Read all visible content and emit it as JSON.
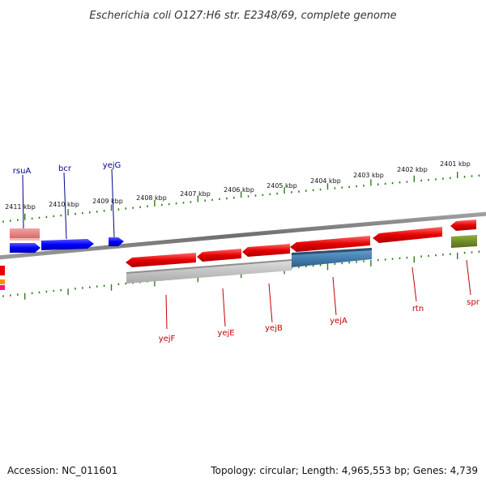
{
  "title": "Escherichia coli O127:H6 str. E2348/69, complete genome",
  "accession": "Accession: NC_011601",
  "topology": "Topology: circular; Length: 4,965,553 bp; Genes: 4,739",
  "colors": {
    "backbone": "#808080",
    "tick": "#2e7d1a",
    "forward_gene": "#0000ff",
    "reverse_gene": "#e60000",
    "forward_label": "#00008b",
    "reverse_label": "#c00000",
    "rna_gene": "#6b8e23",
    "gray_feature": "#bdbdbd",
    "blue_feature": "#4682b4",
    "pink_feature": "#e88080"
  },
  "ticks": {
    "upper": [
      "2411 kbp",
      "2410 kbp",
      "2409 kbp",
      "2408 kbp",
      "2407 kbp",
      "2406 kbp",
      "2405 kbp",
      "2404 kbp",
      "2403 kbp",
      "2402 kbp",
      "2401 kbp"
    ]
  },
  "genes": [
    {
      "name": "rsuA",
      "strand": "forward",
      "icon": "arrow-right"
    },
    {
      "name": "bcr",
      "strand": "forward",
      "icon": "arrow-right"
    },
    {
      "name": "yejG",
      "strand": "forward",
      "icon": "arrow-right"
    },
    {
      "name": "yejF",
      "strand": "reverse",
      "icon": "arrow-left"
    },
    {
      "name": "yejE",
      "strand": "reverse",
      "icon": "arrow-left"
    },
    {
      "name": "yejB",
      "strand": "reverse",
      "icon": "arrow-left"
    },
    {
      "name": "yejA",
      "strand": "reverse",
      "icon": "arrow-left"
    },
    {
      "name": "rtn",
      "strand": "reverse",
      "icon": "arrow-left"
    },
    {
      "name": "spr",
      "strand": "reverse",
      "icon": "arrow-left"
    }
  ]
}
